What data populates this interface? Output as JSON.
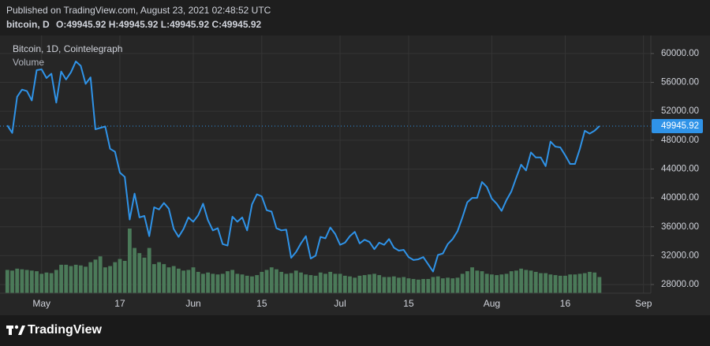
{
  "header": {
    "published": "Published on TradingView.com, August 23, 2021 02:48:52 UTC",
    "symbol": "bitcoin, D",
    "ohlc": "O:49945.92 H:49945.92 L:49945.92 C:49945.92"
  },
  "footer": {
    "brand": "TradingView"
  },
  "chart_data": {
    "type": "line",
    "x": [
      "2021-04-24",
      "2021-04-25",
      "2021-04-26",
      "2021-04-27",
      "2021-04-28",
      "2021-04-29",
      "2021-04-30",
      "2021-05-01",
      "2021-05-02",
      "2021-05-03",
      "2021-05-04",
      "2021-05-05",
      "2021-05-06",
      "2021-05-07",
      "2021-05-08",
      "2021-05-09",
      "2021-05-10",
      "2021-05-11",
      "2021-05-12",
      "2021-05-13",
      "2021-05-14",
      "2021-05-15",
      "2021-05-16",
      "2021-05-17",
      "2021-05-18",
      "2021-05-19",
      "2021-05-20",
      "2021-05-21",
      "2021-05-22",
      "2021-05-23",
      "2021-05-24",
      "2021-05-25",
      "2021-05-26",
      "2021-05-27",
      "2021-05-28",
      "2021-05-29",
      "2021-05-30",
      "2021-05-31",
      "2021-06-01",
      "2021-06-02",
      "2021-06-03",
      "2021-06-04",
      "2021-06-05",
      "2021-06-06",
      "2021-06-07",
      "2021-06-08",
      "2021-06-09",
      "2021-06-10",
      "2021-06-11",
      "2021-06-12",
      "2021-06-13",
      "2021-06-14",
      "2021-06-15",
      "2021-06-16",
      "2021-06-17",
      "2021-06-18",
      "2021-06-19",
      "2021-06-20",
      "2021-06-21",
      "2021-06-22",
      "2021-06-23",
      "2021-06-24",
      "2021-06-25",
      "2021-06-26",
      "2021-06-27",
      "2021-06-28",
      "2021-06-29",
      "2021-06-30",
      "2021-07-01",
      "2021-07-02",
      "2021-07-03",
      "2021-07-04",
      "2021-07-05",
      "2021-07-06",
      "2021-07-07",
      "2021-07-08",
      "2021-07-09",
      "2021-07-10",
      "2021-07-11",
      "2021-07-12",
      "2021-07-13",
      "2021-07-14",
      "2021-07-15",
      "2021-07-16",
      "2021-07-17",
      "2021-07-18",
      "2021-07-19",
      "2021-07-20",
      "2021-07-21",
      "2021-07-22",
      "2021-07-23",
      "2021-07-24",
      "2021-07-25",
      "2021-07-26",
      "2021-07-27",
      "2021-07-28",
      "2021-07-29",
      "2021-07-30",
      "2021-07-31",
      "2021-08-01",
      "2021-08-02",
      "2021-08-03",
      "2021-08-04",
      "2021-08-05",
      "2021-08-06",
      "2021-08-07",
      "2021-08-08",
      "2021-08-09",
      "2021-08-10",
      "2021-08-11",
      "2021-08-12",
      "2021-08-13",
      "2021-08-14",
      "2021-08-15",
      "2021-08-16",
      "2021-08-17",
      "2021-08-18",
      "2021-08-19",
      "2021-08-20",
      "2021-08-21",
      "2021-08-22",
      "2021-08-23"
    ],
    "series": [
      {
        "name": "Bitcoin, 1D, Cointelegraph",
        "color": "#2f93e8",
        "values": [
          50050,
          49000,
          54000,
          55000,
          54800,
          53500,
          57700,
          57800,
          56600,
          57200,
          53200,
          57500,
          56400,
          57400,
          58900,
          58300,
          55800,
          56700,
          49500,
          49700,
          49900,
          46800,
          46400,
          43500,
          42900,
          37000,
          40600,
          37300,
          37500,
          34700,
          38700,
          38400,
          39300,
          38500,
          35700,
          34600,
          35700,
          37300,
          36700,
          37600,
          39200,
          36900,
          35500,
          35800,
          33600,
          33400,
          37400,
          36700,
          37300,
          35500,
          39100,
          40500,
          40200,
          38300,
          38100,
          35800,
          35500,
          35600,
          31700,
          32500,
          33700,
          34700,
          31600,
          32000,
          34600,
          34400,
          35900,
          35000,
          33500,
          33800,
          34700,
          35300,
          33700,
          34200,
          33900,
          32900,
          33800,
          33500,
          34300,
          33100,
          32700,
          32800,
          31800,
          31400,
          31500,
          31800,
          30800,
          29800,
          32100,
          32300,
          33600,
          34300,
          35400,
          37300,
          39400,
          40000,
          40000,
          42200,
          41500,
          39900,
          39200,
          38200,
          39700,
          40900,
          42800,
          44600,
          43800,
          46300,
          45600,
          45600,
          44400,
          47800,
          47100,
          47000,
          45900,
          44700,
          44700,
          46800,
          49300,
          48900,
          49300,
          49945.92
        ]
      },
      {
        "name": "Volume",
        "color": "#4b7a59",
        "values": [
          36,
          35,
          38,
          37,
          36,
          35,
          34,
          30,
          32,
          31,
          36,
          44,
          44,
          42,
          44,
          43,
          41,
          48,
          52,
          57,
          40,
          42,
          48,
          53,
          50,
          100,
          70,
          62,
          55,
          70,
          45,
          48,
          45,
          40,
          42,
          38,
          35,
          36,
          40,
          33,
          30,
          32,
          30,
          29,
          30,
          34,
          36,
          30,
          29,
          27,
          26,
          28,
          33,
          36,
          40,
          37,
          33,
          30,
          31,
          35,
          32,
          29,
          28,
          27,
          32,
          30,
          33,
          30,
          30,
          27,
          26,
          24,
          27,
          28,
          29,
          30,
          28,
          25,
          25,
          26,
          24,
          25,
          23,
          22,
          21,
          22,
          22,
          25,
          26,
          23,
          24,
          23,
          24,
          30,
          34,
          40,
          35,
          34,
          30,
          29,
          28,
          29,
          30,
          34,
          35,
          38,
          36,
          35,
          33,
          31,
          31,
          29,
          28,
          27,
          27,
          29,
          29,
          30,
          31,
          33,
          32,
          25
        ]
      }
    ],
    "xlim": [
      "2021-04-22T12:00:00Z",
      "2021-09-02T12:00:00Z"
    ],
    "xticks": [
      {
        "value": "2021-05-01",
        "label": "May"
      },
      {
        "value": "2021-05-17",
        "label": "17"
      },
      {
        "value": "2021-06-01",
        "label": "Jun"
      },
      {
        "value": "2021-06-15",
        "label": "15"
      },
      {
        "value": "2021-07-01",
        "label": "Jul"
      },
      {
        "value": "2021-07-15",
        "label": "15"
      },
      {
        "value": "2021-08-01",
        "label": "Aug"
      },
      {
        "value": "2021-08-16",
        "label": "16"
      },
      {
        "value": "2021-09-01",
        "label": "Sep"
      }
    ],
    "ylim": [
      26800,
      62500
    ],
    "yticks": [
      {
        "value": 28000,
        "label": "28000.00"
      },
      {
        "value": 32000,
        "label": "32000.00"
      },
      {
        "value": 36000,
        "label": "36000.00"
      },
      {
        "value": 40000,
        "label": "40000.00"
      },
      {
        "value": 44000,
        "label": "44000.00"
      },
      {
        "value": 48000,
        "label": "48000.00"
      },
      {
        "value": 52000,
        "label": "52000.00"
      },
      {
        "value": 56000,
        "label": "56000.00"
      },
      {
        "value": 60000,
        "label": "60000.00"
      }
    ],
    "grid": true
  }
}
